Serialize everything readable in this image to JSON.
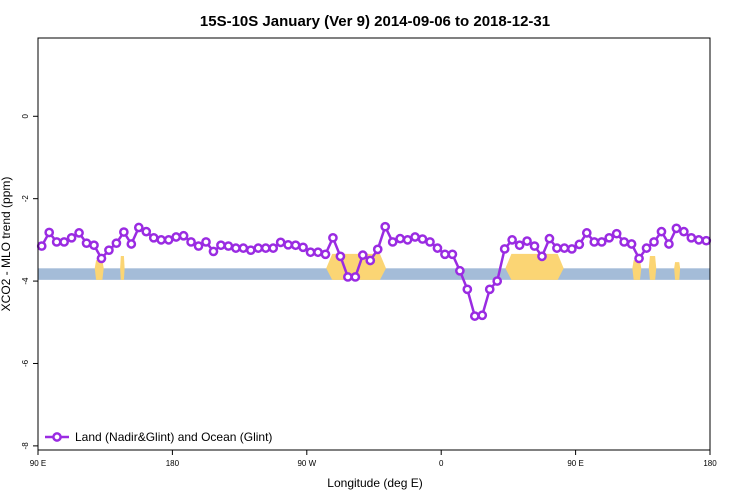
{
  "chart_data": {
    "type": "line",
    "title": "15S-10S January (Ver 9)   2014-09-06 to 2018-12-31",
    "xlabel": "Longitude (deg E)",
    "ylabel": "XCO2 - MLO trend (ppm)",
    "x_range_deg_east_unwrapped": [
      90,
      540
    ],
    "ylim": [
      -8.1,
      1.9
    ],
    "x_ticks": [
      {
        "x": 90,
        "label": "90 E"
      },
      {
        "x": 180,
        "label": "180"
      },
      {
        "x": 270,
        "label": "90 W"
      },
      {
        "x": 360,
        "label": "0"
      },
      {
        "x": 450,
        "label": "90 E"
      },
      {
        "x": 540,
        "label": "180"
      }
    ],
    "y_ticks": [
      {
        "y": -8,
        "label": "-8"
      },
      {
        "y": -6,
        "label": "-6"
      },
      {
        "y": -4,
        "label": "-4"
      },
      {
        "y": -2,
        "label": "-2"
      },
      {
        "y": 0,
        "label": "0"
      }
    ],
    "legend": {
      "position": "bottom-left",
      "label": "Land (Nadir&Glint) and Ocean (Glint)"
    },
    "colors": {
      "series": "#9a2be2",
      "ocean_band": "#a4bcd8",
      "land_band": "#fbd574"
    },
    "surface_band": {
      "y_top": -3.69,
      "y_bottom": -3.97
    },
    "land_segments": [
      {
        "x0": 128,
        "x1": 134,
        "height": 0.2
      },
      {
        "x0": 145,
        "x1": 148,
        "height": 0.3
      },
      {
        "x0": 283,
        "x1": 323,
        "height": 0.35
      },
      {
        "x0": 403,
        "x1": 442,
        "height": 0.35
      },
      {
        "x0": 488,
        "x1": 494,
        "height": 0.2
      },
      {
        "x0": 499,
        "x1": 504,
        "height": 0.3
      },
      {
        "x0": 516,
        "x1": 520,
        "height": 0.15
      }
    ],
    "series": [
      {
        "name": "Land (Nadir&Glint) and Ocean (Glint)",
        "x": [
          92.5,
          97.5,
          102.5,
          107.5,
          112.5,
          117.5,
          122.5,
          127.5,
          132.5,
          137.5,
          142.5,
          147.5,
          152.5,
          157.5,
          162.5,
          167.5,
          172.5,
          177.5,
          182.5,
          187.5,
          192.5,
          197.5,
          202.5,
          207.5,
          212.5,
          217.5,
          222.5,
          227.5,
          232.5,
          237.5,
          242.5,
          247.5,
          252.5,
          257.5,
          262.5,
          267.5,
          272.5,
          277.5,
          282.5,
          287.5,
          292.5,
          297.5,
          302.5,
          307.5,
          312.5,
          317.5,
          322.5,
          327.5,
          332.5,
          337.5,
          342.5,
          347.5,
          352.5,
          357.5,
          362.5,
          367.5,
          372.5,
          377.5,
          382.5,
          387.5,
          392.5,
          397.5,
          402.5,
          407.5,
          412.5,
          417.5,
          422.5,
          427.5,
          432.5,
          437.5,
          442.5,
          447.5,
          452.5,
          457.5,
          462.5,
          467.5,
          472.5,
          477.5,
          482.5,
          487.5,
          492.5,
          497.5,
          502.5,
          507.5,
          512.5,
          517.5,
          522.5,
          527.5,
          532.5,
          537.5
        ],
        "values": [
          -3.15,
          -2.82,
          -3.05,
          -3.05,
          -2.95,
          -2.83,
          -3.08,
          -3.13,
          -3.45,
          -3.25,
          -3.08,
          -2.81,
          -3.1,
          -2.7,
          -2.8,
          -2.95,
          -3.0,
          -3.0,
          -2.93,
          -2.9,
          -3.05,
          -3.15,
          -3.05,
          -3.28,
          -3.13,
          -3.15,
          -3.2,
          -3.2,
          -3.25,
          -3.2,
          -3.2,
          -3.2,
          -3.06,
          -3.12,
          -3.13,
          -3.18,
          -3.3,
          -3.3,
          -3.35,
          -2.95,
          -3.4,
          -3.9,
          -3.9,
          -3.37,
          -3.5,
          -3.23,
          -2.68,
          -3.05,
          -2.97,
          -3.0,
          -2.93,
          -2.98,
          -3.05,
          -3.2,
          -3.35,
          -3.35,
          -3.75,
          -4.2,
          -4.85,
          -4.83,
          -4.2,
          -4.0,
          -3.22,
          -3.0,
          -3.13,
          -3.03,
          -3.15,
          -3.4,
          -2.97,
          -3.2,
          -3.2,
          -3.22,
          -3.11,
          -2.83,
          -3.05,
          -3.05,
          -2.95,
          -2.85,
          -3.05,
          -3.1,
          -3.45,
          -3.2,
          -3.05,
          -2.8,
          -3.1,
          -2.72,
          -2.8,
          -2.95,
          -3.0,
          -3.02
        ]
      }
    ]
  }
}
